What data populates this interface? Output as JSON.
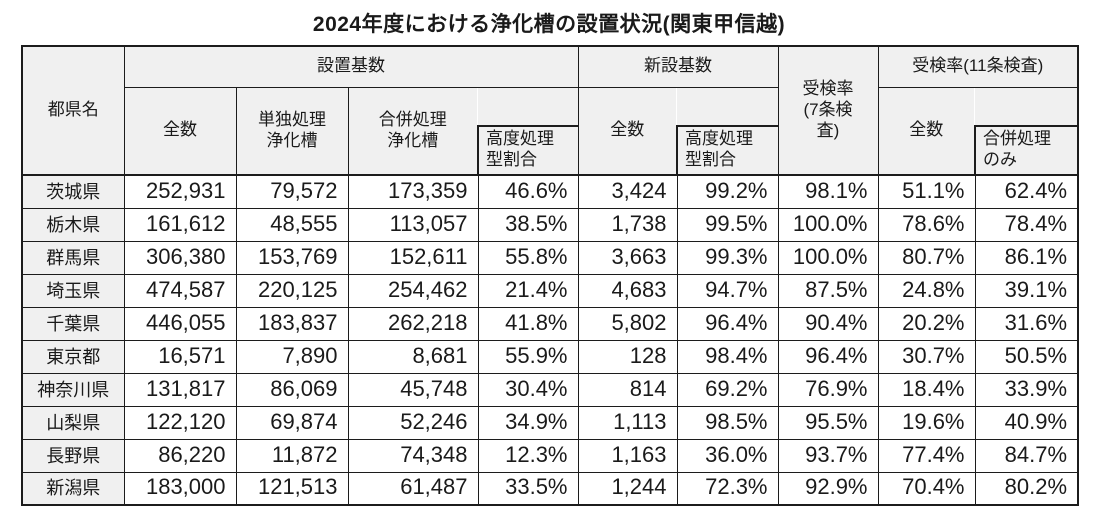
{
  "colors": {
    "border": "#1c1c1c",
    "header_fill": "#f0f0f0",
    "page_bg": "#ffffff",
    "text": "#1a1a1a"
  },
  "title": "2024年度における浄化槽の設置状況(関東甲信越)",
  "table": {
    "header": {
      "prefecture": "都県名",
      "installed_group": "設置基数",
      "new_group": "新設基数",
      "rate7_group": "受検率\n(7条検\n査)",
      "rate11_group": "受検率(11条検査)",
      "installed_total": "全数",
      "installed_tandoku": "単独処理\n浄化槽",
      "installed_gappei": "合併処理\n浄化槽",
      "installed_advanced_ratio": "高度処理\n型割合",
      "new_total": "全数",
      "new_advanced_ratio": "高度処理\n型割合",
      "rate11_total": "全数",
      "rate11_gappei_only": "合併処理\nのみ"
    },
    "rows": [
      {
        "name": "茨城県",
        "values": [
          "252,931",
          "79,572",
          "173,359",
          "46.6%",
          "3,424",
          "99.2%",
          "98.1%",
          "51.1%",
          "62.4%"
        ]
      },
      {
        "name": "栃木県",
        "values": [
          "161,612",
          "48,555",
          "113,057",
          "38.5%",
          "1,738",
          "99.5%",
          "100.0%",
          "78.6%",
          "78.4%"
        ]
      },
      {
        "name": "群馬県",
        "values": [
          "306,380",
          "153,769",
          "152,611",
          "55.8%",
          "3,663",
          "99.3%",
          "100.0%",
          "80.7%",
          "86.1%"
        ]
      },
      {
        "name": "埼玉県",
        "values": [
          "474,587",
          "220,125",
          "254,462",
          "21.4%",
          "4,683",
          "94.7%",
          "87.5%",
          "24.8%",
          "39.1%"
        ]
      },
      {
        "name": "千葉県",
        "values": [
          "446,055",
          "183,837",
          "262,218",
          "41.8%",
          "5,802",
          "96.4%",
          "90.4%",
          "20.2%",
          "31.6%"
        ]
      },
      {
        "name": "東京都",
        "values": [
          "16,571",
          "7,890",
          "8,681",
          "55.9%",
          "128",
          "98.4%",
          "96.4%",
          "30.7%",
          "50.5%"
        ]
      },
      {
        "name": "神奈川県",
        "values": [
          "131,817",
          "86,069",
          "45,748",
          "30.4%",
          "814",
          "69.2%",
          "76.9%",
          "18.4%",
          "33.9%"
        ]
      },
      {
        "name": "山梨県",
        "values": [
          "122,120",
          "69,874",
          "52,246",
          "34.9%",
          "1,113",
          "98.5%",
          "95.5%",
          "19.6%",
          "40.9%"
        ]
      },
      {
        "name": "長野県",
        "values": [
          "86,220",
          "11,872",
          "74,348",
          "12.3%",
          "1,163",
          "36.0%",
          "93.7%",
          "77.4%",
          "84.7%"
        ]
      },
      {
        "name": "新潟県",
        "values": [
          "183,000",
          "121,513",
          "61,487",
          "33.5%",
          "1,244",
          "72.3%",
          "92.9%",
          "70.4%",
          "80.2%"
        ]
      }
    ]
  },
  "chart_data": {
    "type": "table",
    "title": "2024年度における浄化槽の設置状況(関東甲信越)",
    "column_groups": [
      "設置基数",
      "新設基数",
      "受検率(7条検査)",
      "受検率(11条検査)"
    ],
    "columns": [
      "都県名",
      "設置基数 全数",
      "設置基数 単独処理浄化槽",
      "設置基数 合併処理浄化槽",
      "設置基数 高度処理型割合",
      "新設基数 全数",
      "新設基数 高度処理型割合",
      "受検率(7条検査)",
      "受検率(11条検査) 全数",
      "受検率(11条検査) 合併処理のみ"
    ],
    "rows": [
      [
        "茨城県",
        "252,931",
        "79,572",
        "173,359",
        "46.6%",
        "3,424",
        "99.2%",
        "98.1%",
        "51.1%",
        "62.4%"
      ],
      [
        "栃木県",
        "161,612",
        "48,555",
        "113,057",
        "38.5%",
        "1,738",
        "99.5%",
        "100.0%",
        "78.6%",
        "78.4%"
      ],
      [
        "群馬県",
        "306,380",
        "153,769",
        "152,611",
        "55.8%",
        "3,663",
        "99.3%",
        "100.0%",
        "80.7%",
        "86.1%"
      ],
      [
        "埼玉県",
        "474,587",
        "220,125",
        "254,462",
        "21.4%",
        "4,683",
        "94.7%",
        "87.5%",
        "24.8%",
        "39.1%"
      ],
      [
        "千葉県",
        "446,055",
        "183,837",
        "262,218",
        "41.8%",
        "5,802",
        "96.4%",
        "90.4%",
        "20.2%",
        "31.6%"
      ],
      [
        "東京都",
        "16,571",
        "7,890",
        "8,681",
        "55.9%",
        "128",
        "98.4%",
        "96.4%",
        "30.7%",
        "50.5%"
      ],
      [
        "神奈川県",
        "131,817",
        "86,069",
        "45,748",
        "30.4%",
        "814",
        "69.2%",
        "76.9%",
        "18.4%",
        "33.9%"
      ],
      [
        "山梨県",
        "122,120",
        "69,874",
        "52,246",
        "34.9%",
        "1,113",
        "98.5%",
        "95.5%",
        "19.6%",
        "40.9%"
      ],
      [
        "長野県",
        "86,220",
        "11,872",
        "74,348",
        "12.3%",
        "1,163",
        "36.0%",
        "93.7%",
        "77.4%",
        "84.7%"
      ],
      [
        "新潟県",
        "183,000",
        "121,513",
        "61,487",
        "33.5%",
        "1,244",
        "72.3%",
        "92.9%",
        "70.4%",
        "80.2%"
      ]
    ]
  }
}
